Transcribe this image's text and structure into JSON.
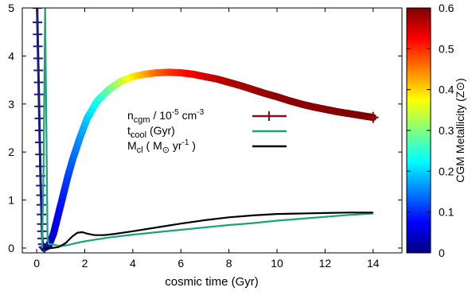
{
  "chart_data": {
    "type": "line",
    "xlabel": "cosmic time (Gyr)",
    "ylabel": "",
    "xlim": [
      -0.6,
      15.2
    ],
    "ylim": [
      -0.1,
      5
    ],
    "x_ticks": [
      0,
      2,
      4,
      6,
      8,
      10,
      12,
      14
    ],
    "y_ticks": [
      0,
      1,
      2,
      3,
      4,
      5
    ],
    "grid": false,
    "legend_position": "center",
    "colorbar": {
      "label": "CGM Metallicity (Z⊙)",
      "range": [
        0,
        0.6
      ],
      "ticks": [
        0,
        0.1,
        0.2,
        0.3,
        0.4,
        0.5,
        0.6
      ],
      "colormap": "jet"
    },
    "series": [
      {
        "name": "ncgm / 10-5 cm-3",
        "label_main": "n",
        "label_sub": "cgm",
        "label_rest": " / 10",
        "label_exp1": "-5",
        "label_rest2": " cm",
        "label_exp2": "-3",
        "colored_by": "CGM Metallicity",
        "marker": "plus",
        "early_points": [
          [
            0.02,
            5.0
          ],
          [
            0.03,
            4.7
          ],
          [
            0.04,
            4.45
          ],
          [
            0.05,
            4.2
          ],
          [
            0.06,
            3.95
          ],
          [
            0.07,
            3.7
          ],
          [
            0.08,
            3.45
          ],
          [
            0.09,
            3.2
          ],
          [
            0.1,
            2.95
          ],
          [
            0.11,
            2.7
          ],
          [
            0.12,
            2.45
          ],
          [
            0.13,
            2.2
          ],
          [
            0.14,
            1.95
          ],
          [
            0.15,
            1.7
          ],
          [
            0.16,
            1.5
          ],
          [
            0.17,
            1.3
          ],
          [
            0.18,
            1.1
          ],
          [
            0.19,
            0.9
          ],
          [
            0.2,
            0.7
          ],
          [
            0.21,
            0.5
          ],
          [
            0.22,
            0.35
          ],
          [
            0.23,
            0.2
          ],
          [
            0.25,
            0.08
          ],
          [
            0.28,
            0.02
          ],
          [
            0.32,
            0.0
          ]
        ],
        "points": [
          [
            0.3,
            0.0,
            0.02
          ],
          [
            0.5,
            0.05,
            0.03
          ],
          [
            0.7,
            0.3,
            0.05
          ],
          [
            0.9,
            0.7,
            0.07
          ],
          [
            1.1,
            1.1,
            0.09
          ],
          [
            1.3,
            1.5,
            0.11
          ],
          [
            1.5,
            1.85,
            0.13
          ],
          [
            1.8,
            2.3,
            0.16
          ],
          [
            2.1,
            2.7,
            0.19
          ],
          [
            2.5,
            3.05,
            0.23
          ],
          [
            3.0,
            3.3,
            0.28
          ],
          [
            3.5,
            3.47,
            0.33
          ],
          [
            4.0,
            3.57,
            0.38
          ],
          [
            4.5,
            3.62,
            0.42
          ],
          [
            5.0,
            3.65,
            0.46
          ],
          [
            5.5,
            3.66,
            0.49
          ],
          [
            6.0,
            3.65,
            0.51
          ],
          [
            6.5,
            3.62,
            0.53
          ],
          [
            7.0,
            3.57,
            0.55
          ],
          [
            7.5,
            3.52,
            0.56
          ],
          [
            8.0,
            3.45,
            0.57
          ],
          [
            8.5,
            3.38,
            0.575
          ],
          [
            9.0,
            3.3,
            0.58
          ],
          [
            9.5,
            3.22,
            0.585
          ],
          [
            10.0,
            3.15,
            0.59
          ],
          [
            10.5,
            3.07,
            0.592
          ],
          [
            11.0,
            3.0,
            0.594
          ],
          [
            11.5,
            2.94,
            0.596
          ],
          [
            12.0,
            2.89,
            0.597
          ],
          [
            12.5,
            2.84,
            0.598
          ],
          [
            13.0,
            2.8,
            0.599
          ],
          [
            13.5,
            2.76,
            0.6
          ],
          [
            14.0,
            2.72,
            0.6
          ]
        ],
        "legend_color": "#8b0a1e"
      },
      {
        "name": "tcool (Gyr)",
        "label_main": "t",
        "label_sub": "cool",
        "label_rest": " (Gyr)",
        "color": "#1aa37a",
        "points": [
          [
            0.22,
            0.0
          ],
          [
            0.28,
            1.5
          ],
          [
            0.32,
            3.5
          ],
          [
            0.35,
            5.0
          ],
          [
            0.45,
            0.2
          ],
          [
            0.5,
            0.08
          ],
          [
            0.6,
            0.08
          ],
          [
            0.8,
            0.06
          ],
          [
            1.0,
            0.04
          ],
          [
            1.3,
            0.06
          ],
          [
            1.6,
            0.1
          ],
          [
            2.0,
            0.14
          ],
          [
            2.5,
            0.18
          ],
          [
            3.0,
            0.22
          ],
          [
            4.0,
            0.28
          ],
          [
            5.0,
            0.33
          ],
          [
            6.0,
            0.38
          ],
          [
            7.0,
            0.43
          ],
          [
            8.0,
            0.48
          ],
          [
            9.0,
            0.52
          ],
          [
            10.0,
            0.57
          ],
          [
            11.0,
            0.61
          ],
          [
            12.0,
            0.65
          ],
          [
            13.0,
            0.69
          ],
          [
            14.0,
            0.72
          ]
        ]
      },
      {
        "name": "Mcl ( M⊙ yr-1 )",
        "label_main": "M",
        "label_sub": "cl",
        "label_rest": " ( M",
        "label_sun": "⊙",
        "label_rest2": " yr",
        "label_exp": "-1",
        "label_rest3": " )",
        "color": "#000000",
        "points": [
          [
            0.3,
            0.0
          ],
          [
            0.6,
            0.0
          ],
          [
            0.9,
            0.02
          ],
          [
            1.2,
            0.1
          ],
          [
            1.5,
            0.25
          ],
          [
            1.7,
            0.32
          ],
          [
            1.9,
            0.33
          ],
          [
            2.1,
            0.3
          ],
          [
            2.4,
            0.27
          ],
          [
            2.8,
            0.27
          ],
          [
            3.2,
            0.29
          ],
          [
            4.0,
            0.35
          ],
          [
            5.0,
            0.43
          ],
          [
            6.0,
            0.51
          ],
          [
            7.0,
            0.58
          ],
          [
            8.0,
            0.64
          ],
          [
            9.0,
            0.68
          ],
          [
            10.0,
            0.71
          ],
          [
            11.0,
            0.72
          ],
          [
            12.0,
            0.73
          ],
          [
            13.0,
            0.74
          ],
          [
            14.0,
            0.74
          ]
        ]
      }
    ]
  }
}
